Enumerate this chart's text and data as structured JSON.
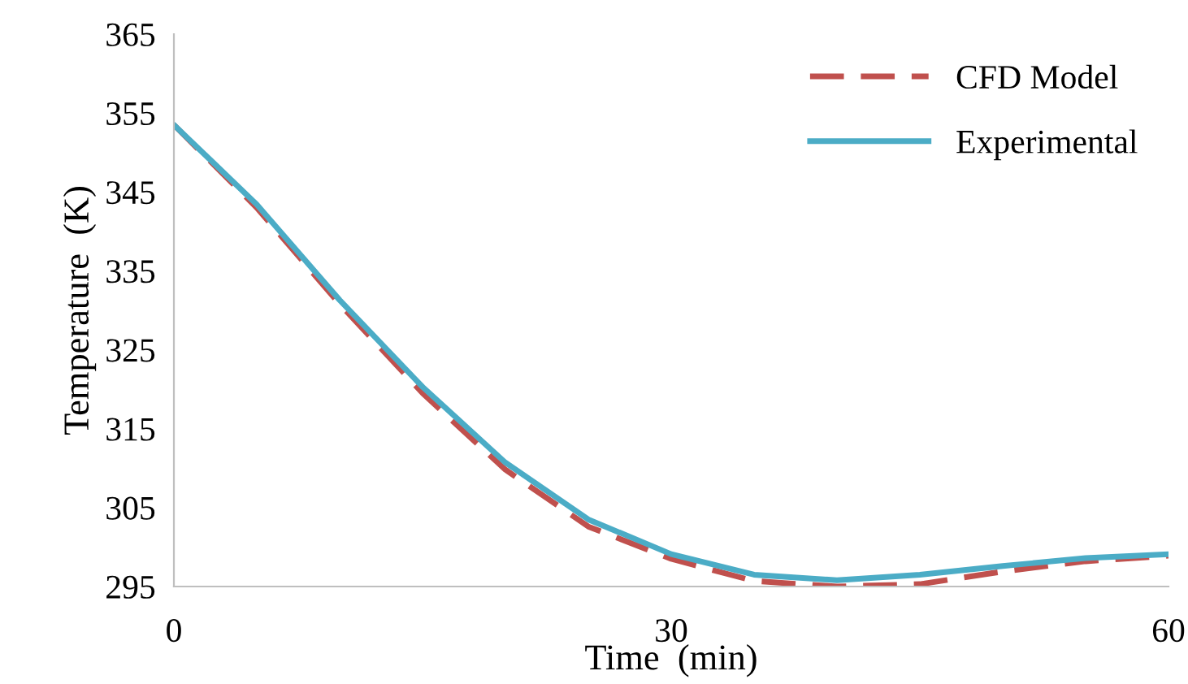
{
  "chart_data": {
    "type": "line",
    "xlabel": "Time  (min)",
    "ylabel": "Temperature  (K)",
    "xlim": [
      0,
      60
    ],
    "xticks": [
      0,
      30,
      60
    ],
    "ylim": [
      295,
      365
    ],
    "yticks": [
      295,
      305,
      315,
      325,
      335,
      345,
      355,
      365
    ],
    "grid": false,
    "legend": "top right",
    "series": [
      {
        "name": "CFD Model",
        "color": "#c0504d",
        "line_style": "dashed",
        "x": [
          0,
          5,
          10,
          15,
          20,
          25,
          30,
          35,
          40,
          45,
          50,
          55,
          60
        ],
        "values": [
          353.5,
          343.0,
          330.8,
          319.5,
          309.8,
          302.6,
          298.5,
          295.7,
          295.0,
          295.3,
          296.9,
          298.2,
          298.9
        ]
      },
      {
        "name": "Experimental",
        "color": "#4bacc6",
        "line_style": "solid",
        "x": [
          0,
          5,
          10,
          15,
          20,
          25,
          30,
          35,
          40,
          45,
          50,
          55,
          60
        ],
        "values": [
          353.5,
          343.4,
          331.3,
          320.3,
          310.7,
          303.5,
          299.1,
          296.5,
          295.8,
          296.5,
          297.6,
          298.6,
          299.1
        ]
      }
    ]
  }
}
